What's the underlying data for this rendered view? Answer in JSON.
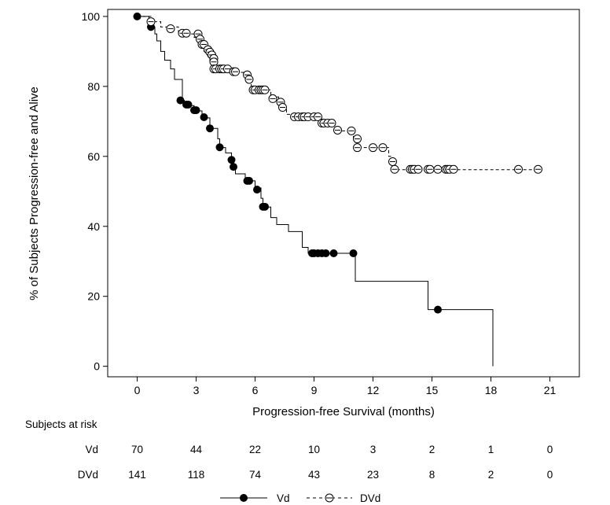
{
  "chart_data": {
    "type": "line",
    "title": "",
    "xlabel": "Progression-free Survival (months)",
    "ylabel": "% of Subjects Progression-free and Alive",
    "xlim": [
      -1.5,
      22.5
    ],
    "ylim": [
      -3,
      102
    ],
    "xticks": [
      "0",
      "3",
      "6",
      "9",
      "12",
      "15",
      "18",
      "21"
    ],
    "yticks": [
      "0",
      "20",
      "40",
      "60",
      "80",
      "100"
    ],
    "series": [
      {
        "name": "Vd",
        "style": "solid",
        "marker": "filled",
        "steps": [
          [
            0,
            100
          ],
          [
            0.6,
            98.5
          ],
          [
            0.8,
            97
          ],
          [
            0.9,
            95
          ],
          [
            1.0,
            93
          ],
          [
            1.2,
            90
          ],
          [
            1.4,
            87.5
          ],
          [
            1.7,
            85
          ],
          [
            1.9,
            82
          ],
          [
            2.3,
            76
          ],
          [
            2.4,
            75
          ],
          [
            2.5,
            74.5
          ],
          [
            2.9,
            73
          ],
          [
            3.3,
            72
          ],
          [
            3.4,
            71
          ],
          [
            3.7,
            68
          ],
          [
            4.1,
            65
          ],
          [
            4.2,
            62.5
          ],
          [
            4.5,
            61
          ],
          [
            4.8,
            59
          ],
          [
            4.9,
            57
          ],
          [
            5.0,
            55
          ],
          [
            5.5,
            53
          ],
          [
            6.0,
            51
          ],
          [
            6.3,
            48
          ],
          [
            6.4,
            45.5
          ],
          [
            6.8,
            42.5
          ],
          [
            7.1,
            40.5
          ],
          [
            7.7,
            38.5
          ],
          [
            8.4,
            34
          ],
          [
            8.7,
            32.3
          ],
          [
            11.1,
            24.3
          ],
          [
            14.8,
            16.2
          ],
          [
            18.1,
            0
          ]
        ],
        "censor": [
          [
            0,
            100
          ],
          [
            0.7,
            97
          ],
          [
            2.2,
            76
          ],
          [
            2.5,
            74.8
          ],
          [
            2.6,
            74.8
          ],
          [
            2.9,
            73.2
          ],
          [
            3.0,
            73.2
          ],
          [
            3.4,
            71.2
          ],
          [
            3.7,
            68
          ],
          [
            4.2,
            62.6
          ],
          [
            4.8,
            59
          ],
          [
            4.9,
            57
          ],
          [
            5.6,
            53
          ],
          [
            5.7,
            53
          ],
          [
            6.1,
            50.5
          ],
          [
            6.4,
            45.6
          ],
          [
            6.5,
            45.6
          ],
          [
            8.9,
            32.3
          ],
          [
            9.0,
            32.3
          ],
          [
            9.2,
            32.3
          ],
          [
            9.4,
            32.3
          ],
          [
            9.6,
            32.3
          ],
          [
            10.0,
            32.3
          ],
          [
            11.0,
            32.3
          ],
          [
            15.3,
            16.2
          ]
        ]
      },
      {
        "name": "DVd",
        "style": "dashed",
        "marker": "open",
        "steps": [
          [
            0,
            100
          ],
          [
            0.7,
            98.5
          ],
          [
            1.2,
            97
          ],
          [
            2.1,
            95
          ],
          [
            2.9,
            94
          ],
          [
            3.1,
            92.5
          ],
          [
            3.3,
            91
          ],
          [
            3.4,
            90
          ],
          [
            3.6,
            88.5
          ],
          [
            3.7,
            87
          ],
          [
            3.8,
            85
          ],
          [
            4.8,
            84
          ],
          [
            5.6,
            82
          ],
          [
            5.8,
            79
          ],
          [
            6.8,
            77
          ],
          [
            7.2,
            75.5
          ],
          [
            7.4,
            74
          ],
          [
            7.6,
            72
          ],
          [
            8.0,
            71.3
          ],
          [
            9.3,
            70.5
          ],
          [
            9.5,
            69.5
          ],
          [
            9.9,
            68.5
          ],
          [
            10.2,
            67.3
          ],
          [
            11.0,
            65
          ],
          [
            11.1,
            62.5
          ],
          [
            12.8,
            60
          ],
          [
            13.0,
            58
          ],
          [
            13.1,
            56.2
          ]
        ],
        "censor": [
          [
            0.7,
            98.5
          ],
          [
            1.7,
            96.5
          ],
          [
            2.3,
            95.2
          ],
          [
            2.5,
            95.2
          ],
          [
            3.1,
            95
          ],
          [
            3.2,
            93.5
          ],
          [
            3.3,
            92
          ],
          [
            3.4,
            92
          ],
          [
            3.6,
            90.5
          ],
          [
            3.7,
            89.8
          ],
          [
            3.8,
            89
          ],
          [
            3.9,
            88
          ],
          [
            3.9,
            87
          ],
          [
            3.9,
            85
          ],
          [
            4.0,
            85
          ],
          [
            4.2,
            85
          ],
          [
            4.3,
            85
          ],
          [
            4.4,
            85
          ],
          [
            4.6,
            85
          ],
          [
            4.9,
            84.2
          ],
          [
            5.0,
            84.2
          ],
          [
            5.6,
            83.3
          ],
          [
            5.7,
            82
          ],
          [
            5.9,
            79
          ],
          [
            6.0,
            79
          ],
          [
            6.2,
            79
          ],
          [
            6.3,
            79
          ],
          [
            6.4,
            79
          ],
          [
            6.5,
            79
          ],
          [
            6.9,
            76.5
          ],
          [
            7.3,
            75.5
          ],
          [
            7.4,
            74
          ],
          [
            8.0,
            71.3
          ],
          [
            8.2,
            71.3
          ],
          [
            8.4,
            71.3
          ],
          [
            8.5,
            71.3
          ],
          [
            8.7,
            71.3
          ],
          [
            9.0,
            71.3
          ],
          [
            9.2,
            71.3
          ],
          [
            9.4,
            69.5
          ],
          [
            9.5,
            69.5
          ],
          [
            9.7,
            69.5
          ],
          [
            9.9,
            69.5
          ],
          [
            10.2,
            67.5
          ],
          [
            10.9,
            67.3
          ],
          [
            11.2,
            65
          ],
          [
            11.2,
            62.5
          ],
          [
            12.0,
            62.5
          ],
          [
            12.5,
            62.5
          ],
          [
            13.0,
            58.5
          ],
          [
            13.1,
            56.3
          ],
          [
            13.9,
            56.3
          ],
          [
            14.0,
            56.3
          ],
          [
            14.1,
            56.3
          ],
          [
            14.3,
            56.3
          ],
          [
            14.8,
            56.3
          ],
          [
            14.9,
            56.3
          ],
          [
            15.3,
            56.3
          ],
          [
            15.7,
            56.3
          ],
          [
            15.8,
            56.3
          ],
          [
            15.9,
            56.3
          ],
          [
            16.1,
            56.3
          ],
          [
            19.4,
            56.3
          ],
          [
            20.4,
            56.3
          ]
        ]
      }
    ],
    "legend": {
      "position": "bottom",
      "entries": [
        "Vd",
        "DVd"
      ]
    }
  },
  "risk_table": {
    "title": "Subjects at risk",
    "rows": [
      {
        "label": "Vd",
        "values": [
          "70",
          "44",
          "22",
          "10",
          "3",
          "2",
          "1",
          "0"
        ]
      },
      {
        "label": "DVd",
        "values": [
          "141",
          "118",
          "74",
          "43",
          "23",
          "8",
          "2",
          "0"
        ]
      }
    ]
  }
}
